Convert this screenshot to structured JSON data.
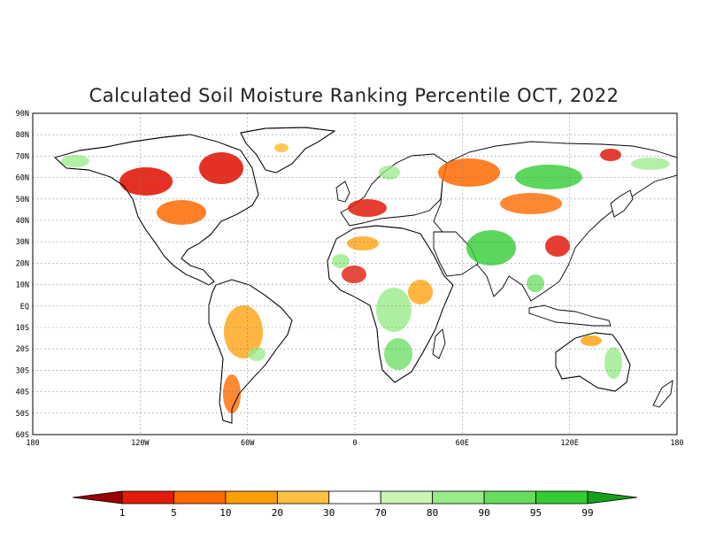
{
  "title": "Calculated Soil Moisture Ranking Percentile OCT, 2022",
  "lat_labels": [
    "90N",
    "80N",
    "70N",
    "60N",
    "50N",
    "40N",
    "30N",
    "20N",
    "10N",
    "EQ",
    "10S",
    "20S",
    "30S",
    "40S",
    "50S",
    "60S"
  ],
  "lon_labels": [
    "180",
    "120W",
    "60W",
    "0",
    "60E",
    "120E",
    "180"
  ],
  "legend": {
    "labels": [
      "1",
      "5",
      "10",
      "20",
      "30",
      "70",
      "80",
      "90",
      "95",
      "99"
    ],
    "colors": [
      "#9a0000",
      "#e21b0c",
      "#ff6a00",
      "#ff9e00",
      "#ffc040",
      "#ffffff",
      "#c8f5b4",
      "#98eb88",
      "#66dd5c",
      "#33cc33",
      "#17a017"
    ]
  },
  "colors": {
    "very_dry": "#e21b0c",
    "dry": "#ff6a00",
    "moderately_dry": "#ff9e00",
    "slightly_dry": "#ffc040",
    "slightly_wet": "#c8f5b4",
    "wet": "#66dd5c",
    "very_wet": "#33cc33"
  }
}
